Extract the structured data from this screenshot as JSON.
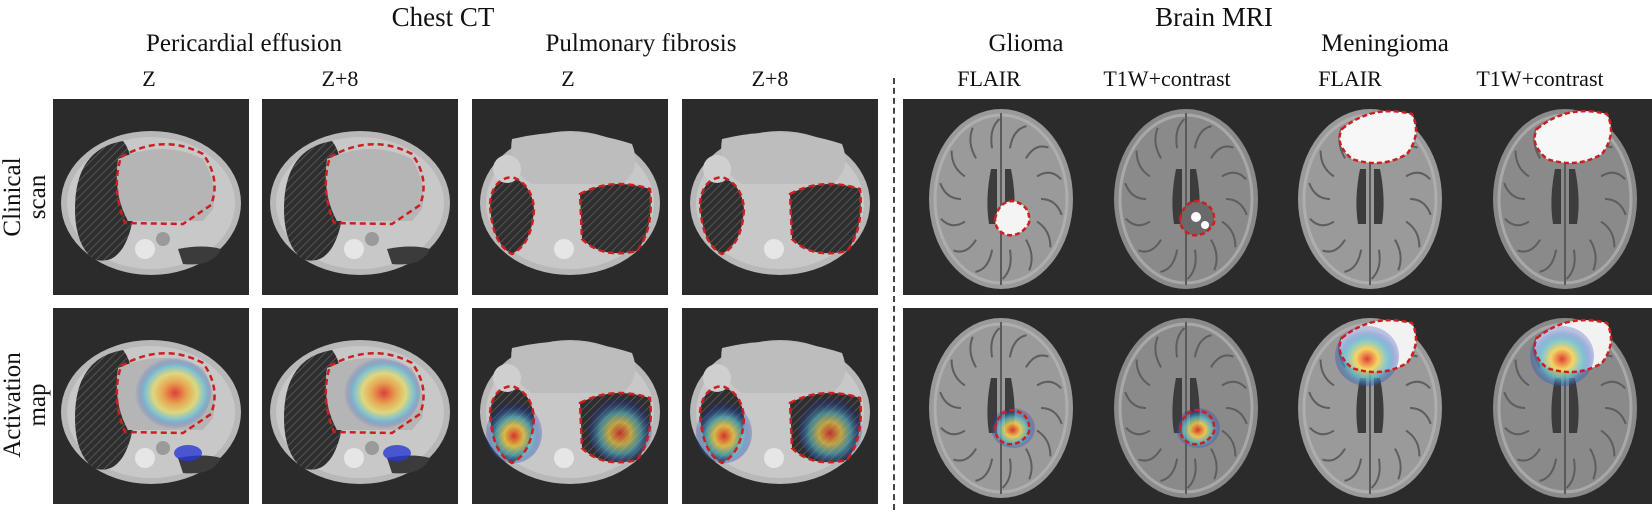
{
  "headers": {
    "ct": "Chest CT",
    "mri": "Brain MRI",
    "conditions": [
      "Pericardial effusion",
      "Pulmonary fibrosis",
      "Glioma",
      "Meningioma"
    ],
    "columns": [
      "Z",
      "Z+8",
      "Z",
      "Z+8",
      "FLAIR",
      "T1W+contrast",
      "FLAIR",
      "T1W+contrast"
    ]
  },
  "rows": {
    "clinical": "Clinical\nscan",
    "activation": "Activation\nmap"
  },
  "colors": {
    "background": "#2b2b2b",
    "lesion_outline": "#cc1f1f",
    "tissue": "#b8b8b8",
    "lung": "#3a3a3a"
  },
  "panels": [
    {
      "modality": "ct",
      "lesion": "effusion",
      "overlay": false
    },
    {
      "modality": "ct",
      "lesion": "effusion",
      "overlay": false
    },
    {
      "modality": "ct",
      "lesion": "fibrosis",
      "overlay": false
    },
    {
      "modality": "ct",
      "lesion": "fibrosis",
      "overlay": false
    },
    {
      "modality": "mri",
      "lesion": "glioma",
      "overlay": false
    },
    {
      "modality": "mri",
      "lesion": "glioma",
      "overlay": false
    },
    {
      "modality": "mri",
      "lesion": "meningioma",
      "overlay": false
    },
    {
      "modality": "mri",
      "lesion": "meningioma",
      "overlay": false
    },
    {
      "modality": "ct",
      "lesion": "effusion",
      "overlay": true
    },
    {
      "modality": "ct",
      "lesion": "effusion",
      "overlay": true
    },
    {
      "modality": "ct",
      "lesion": "fibrosis",
      "overlay": true
    },
    {
      "modality": "ct",
      "lesion": "fibrosis",
      "overlay": true
    },
    {
      "modality": "mri",
      "lesion": "glioma",
      "overlay": true
    },
    {
      "modality": "mri",
      "lesion": "glioma",
      "overlay": true
    },
    {
      "modality": "mri",
      "lesion": "meningioma",
      "overlay": true
    },
    {
      "modality": "mri",
      "lesion": "meningioma",
      "overlay": true
    }
  ]
}
